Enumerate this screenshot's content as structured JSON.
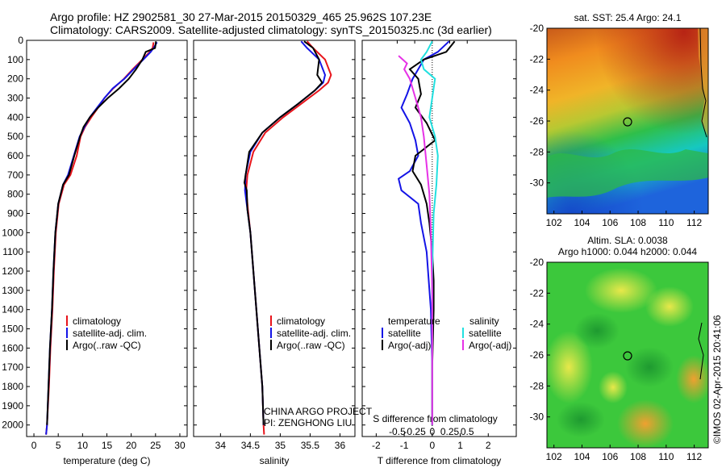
{
  "header": {
    "title_line1": "Argo profile: HZ 2902581_30 27-Mar-2015 20150329_465 25.962S 107.23E",
    "title_line2": "Climatology: CARS2009. Satellite-adjusted climatology: synTS_20150325.nc (3d earlier)"
  },
  "colors": {
    "climatology": "#e8141b",
    "satellite": "#1414e6",
    "argo": "#000000",
    "salinity_satellite": "#22e0e0",
    "salinity_argo": "#e632e6",
    "zero_line": "#000000"
  },
  "depth_ticks": [
    0,
    100,
    200,
    300,
    400,
    500,
    600,
    700,
    800,
    900,
    1000,
    1100,
    1200,
    1300,
    1400,
    1500,
    1600,
    1700,
    1800,
    1900,
    2000
  ],
  "chart_data": [
    {
      "type": "line",
      "panel": "temperature",
      "xlabel": "temperature (deg C)",
      "xlim": [
        -1.5,
        31.5
      ],
      "ylim": [
        2060,
        0
      ],
      "xticks": [
        0,
        5,
        10,
        15,
        20,
        25,
        30
      ],
      "legend": [
        "climatology",
        "satellite-adj. clim.",
        "Argo(..raw -QC)"
      ],
      "series": [
        {
          "name": "climatology",
          "color": "#e8141b",
          "x": [
            24.6,
            24.4,
            23.8,
            22.3,
            20.3,
            18.5,
            16.3,
            14.5,
            13.2,
            11.8,
            10.5,
            9.6,
            8.8,
            7.5,
            6.2,
            5.1,
            4.5,
            4.1,
            3.8,
            3.4,
            3.1,
            2.7,
            2.5
          ],
          "y": [
            10,
            40,
            60,
            100,
            150,
            200,
            250,
            300,
            350,
            400,
            450,
            500,
            600,
            700,
            750,
            850,
            1000,
            1200,
            1400,
            1600,
            1800,
            2000,
            2050
          ]
        },
        {
          "name": "satellite-adj. clim.",
          "color": "#1414e6",
          "x": [
            25.3,
            24.6,
            24.0,
            22.5,
            20.5,
            18.6,
            16.2,
            14.5,
            13.0,
            11.5,
            10.4,
            9.4,
            8.2,
            7.0,
            6.0,
            5.0,
            4.4,
            4.0,
            3.7,
            3.3,
            3.0,
            2.7,
            2.5
          ],
          "y": [
            10,
            40,
            60,
            100,
            150,
            200,
            250,
            300,
            350,
            400,
            450,
            500,
            600,
            700,
            750,
            850,
            1000,
            1200,
            1400,
            1600,
            1800,
            2000,
            2050
          ]
        },
        {
          "name": "Argo(..raw -QC)",
          "color": "#000000",
          "x": [
            25.1,
            24.9,
            23.0,
            22.3,
            21.0,
            19.5,
            17.5,
            15.2,
            13.2,
            11.5,
            10.2,
            9.5,
            8.3,
            7.2,
            6.0,
            5.0,
            4.4,
            4.0,
            3.7,
            3.3,
            3.0,
            2.7
          ],
          "y": [
            5,
            40,
            60,
            100,
            150,
            200,
            250,
            300,
            350,
            400,
            450,
            500,
            600,
            700,
            750,
            850,
            1000,
            1200,
            1400,
            1600,
            1800,
            2000
          ]
        }
      ]
    },
    {
      "type": "line",
      "panel": "salinity",
      "xlabel": "salinity",
      "xlim": [
        33.55,
        36.25
      ],
      "ylim": [
        2060,
        0
      ],
      "xticks": [
        34,
        34.5,
        35,
        35.5,
        36
      ],
      "legend": [
        "climatology",
        "satellite-adj. clim.",
        "Argo(..raw -QC)"
      ],
      "annotations": [
        "CHINA ARGO PROJECT",
        "PI: ZENGHONG LIU"
      ],
      "series": [
        {
          "name": "climatology",
          "color": "#e8141b",
          "x": [
            35.45,
            35.55,
            35.75,
            35.85,
            35.8,
            35.65,
            35.35,
            35.05,
            34.75,
            34.55,
            34.45,
            34.43,
            34.46,
            34.5,
            34.55,
            34.6,
            34.65,
            34.7,
            34.72,
            34.73
          ],
          "y": [
            5,
            40,
            100,
            180,
            220,
            260,
            330,
            400,
            480,
            580,
            700,
            780,
            880,
            1000,
            1200,
            1400,
            1600,
            1800,
            2000,
            2050
          ]
        },
        {
          "name": "satellite-adj. clim.",
          "color": "#1414e6",
          "x": [
            35.35,
            35.45,
            35.65,
            35.75,
            35.72,
            35.58,
            35.3,
            35.0,
            34.7,
            34.5,
            34.42,
            34.41,
            34.45,
            34.5,
            34.55,
            34.6,
            34.65,
            34.7,
            34.72
          ],
          "y": [
            5,
            40,
            100,
            180,
            220,
            260,
            330,
            400,
            480,
            580,
            700,
            780,
            880,
            1000,
            1200,
            1400,
            1600,
            1800,
            2000
          ]
        },
        {
          "name": "Argo(..raw -QC)",
          "color": "#000000",
          "x": [
            35.4,
            35.55,
            35.65,
            35.62,
            35.7,
            35.58,
            35.3,
            35.0,
            34.7,
            34.48,
            34.4,
            34.44,
            34.45,
            34.5,
            34.55,
            34.6,
            34.65,
            34.7,
            34.72
          ],
          "y": [
            5,
            40,
            100,
            180,
            220,
            260,
            330,
            400,
            480,
            580,
            740,
            780,
            880,
            1000,
            1200,
            1400,
            1600,
            1800,
            2000
          ]
        }
      ]
    },
    {
      "type": "line",
      "panel": "difference",
      "xlabel": "T difference from climatology",
      "xlabel_top": "S difference from climatology",
      "xlim": [
        -2.5,
        3.0
      ],
      "ylim": [
        2060,
        0
      ],
      "xticks": [
        -2,
        -1,
        0,
        1,
        2
      ],
      "xticks_top": [
        -0.5,
        -0.25,
        0,
        0.25,
        0.5
      ],
      "xticks_top_labels": [
        "-0.5",
        "-0.25",
        "0",
        "0.25",
        "0.5"
      ],
      "legend_headers": [
        "temperature",
        "salinity"
      ],
      "legend": [
        "satellite",
        "Argo(-adj)",
        "satellite",
        "Argo(-adj)"
      ],
      "series": [
        {
          "name": "temperature satellite",
          "color": "#1414e6",
          "x": [
            0.6,
            0.2,
            -0.3,
            -0.5,
            -0.7,
            -0.9,
            -1.1,
            -0.8,
            -0.6,
            -0.5,
            -0.8,
            -1.2,
            -1.1,
            -0.5,
            -0.4,
            -0.2,
            -0.05,
            0.0,
            0.0
          ],
          "y": [
            5,
            60,
            100,
            150,
            200,
            280,
            350,
            430,
            520,
            600,
            680,
            720,
            780,
            850,
            950,
            1100,
            1400,
            1700,
            2000
          ]
        },
        {
          "name": "temperature Argo(-adj)",
          "color": "#000000",
          "x": [
            0.8,
            0.5,
            -0.3,
            -0.8,
            -0.5,
            -0.4,
            -0.6,
            -0.2,
            0.1,
            -0.6,
            -0.7,
            -0.4,
            -0.2,
            -0.1,
            0.0,
            0.05,
            0.05,
            0.0,
            0.0
          ],
          "y": [
            5,
            60,
            100,
            150,
            200,
            280,
            350,
            430,
            520,
            600,
            680,
            750,
            850,
            950,
            1100,
            1250,
            1400,
            1700,
            2000
          ]
        },
        {
          "name": "salinity satellite",
          "color": "#22e0e0",
          "x": [
            0.0,
            -0.2,
            -0.4,
            -0.3,
            0.1,
            0.0,
            -0.1,
            0.1,
            0.2,
            0.15,
            0.05,
            0.0,
            0.0
          ],
          "y": [
            5,
            60,
            100,
            150,
            200,
            300,
            400,
            500,
            600,
            750,
            900,
            1200,
            2000
          ]
        },
        {
          "name": "salinity Argo(-adj)",
          "color": "#e632e6",
          "x": [
            -1.2,
            -0.9,
            -1.0,
            -0.8,
            -0.6,
            -0.4,
            -0.3,
            -0.2,
            -0.1,
            -0.05,
            0.0,
            0.0
          ],
          "y": [
            80,
            120,
            150,
            200,
            300,
            400,
            500,
            650,
            800,
            1000,
            1300,
            2000
          ]
        }
      ]
    },
    {
      "type": "heatmap",
      "panel": "sst_map",
      "title": "sat. SST: 25.4  Argo: 24.1",
      "xlim": [
        101.5,
        113
      ],
      "ylim": [
        -32,
        -20
      ],
      "xticks": [
        102,
        104,
        106,
        108,
        110,
        112
      ],
      "yticks": [
        -20,
        -22,
        -24,
        -26,
        -28,
        -30
      ],
      "marker": {
        "lon": 107.23,
        "lat": -25.962
      }
    },
    {
      "type": "heatmap",
      "panel": "sla_map",
      "title": "Altim. SLA: 0.0038",
      "subtitle": "Argo h1000: 0.044  h2000: 0.044",
      "xlim": [
        101.5,
        113
      ],
      "ylim": [
        -32,
        -20
      ],
      "xticks": [
        102,
        104,
        106,
        108,
        110,
        112
      ],
      "yticks": [
        -20,
        -22,
        -24,
        -26,
        -28,
        -30
      ],
      "marker": {
        "lon": 107.23,
        "lat": -25.962
      }
    }
  ],
  "credit": "©IMOS 02-Apr-2015 20:41:06"
}
